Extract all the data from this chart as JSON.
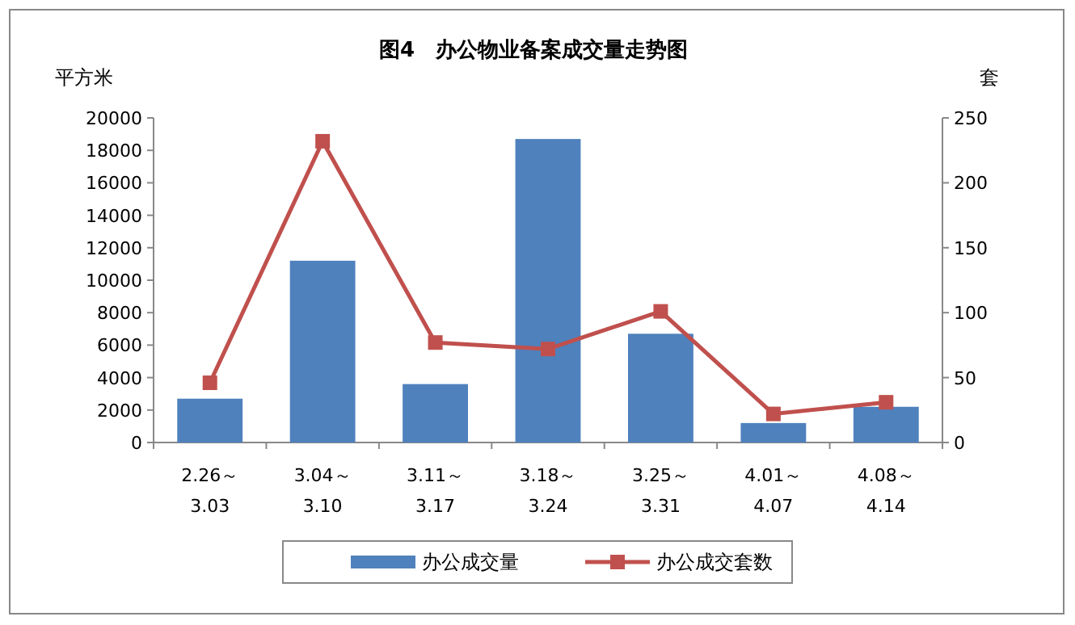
{
  "chart_data": {
    "type": "bar",
    "title": "图4　办公物业备案成交量走势图",
    "ylabel": "平方米",
    "y2label": "套",
    "categories": [
      "2.26～\n3.03",
      "3.04～\n3.10",
      "3.11～\n3.17",
      "3.18～\n3.24",
      "3.25～\n3.31",
      "4.01～\n4.07",
      "4.08～\n4.14"
    ],
    "series": [
      {
        "name": "办公成交量",
        "color": "#4f81bd",
        "values": [
          2700,
          11200,
          3600,
          18700,
          6700,
          1200,
          2200
        ]
      },
      {
        "name": "办公成交套数",
        "type": "line",
        "axis": "y2",
        "color": "#c0504d",
        "marker": "square",
        "values": [
          46,
          232,
          77,
          72,
          101,
          22,
          31
        ]
      }
    ],
    "ylim": [
      0,
      20000
    ],
    "yticks": [
      0,
      2000,
      4000,
      6000,
      8000,
      10000,
      12000,
      14000,
      16000,
      18000,
      20000
    ],
    "y2lim": [
      0,
      250
    ],
    "y2ticks": [
      0,
      50,
      100,
      150,
      200,
      250
    ],
    "grid": false,
    "legend": "bottom"
  }
}
